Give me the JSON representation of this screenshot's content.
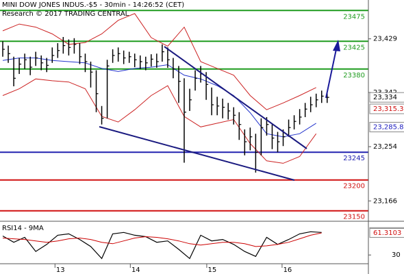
{
  "chart_data": [
    {
      "type": "ohlc",
      "title": "MINI DOW JONES INDUS.-$5 - 30min - 14:26:52 (CET)",
      "subtitle": "Research © 2017 TRADING CENTRAL",
      "x": [
        0,
        1,
        2,
        3,
        4,
        5,
        6,
        7,
        8,
        9,
        10,
        11,
        12,
        13,
        14,
        15,
        16,
        17,
        18,
        19,
        20,
        21,
        22,
        23,
        24,
        25,
        26,
        27,
        28,
        29,
        30,
        31,
        32,
        33,
        34,
        35,
        36,
        37,
        38,
        39,
        40,
        41,
        42,
        43,
        44,
        45,
        46,
        47,
        48,
        49,
        50,
        51,
        52,
        53,
        54,
        55,
        56,
        57,
        58,
        59
      ],
      "high": [
        23425,
        23418,
        23400,
        23398,
        23405,
        23400,
        23408,
        23402,
        23398,
        23415,
        23422,
        23432,
        23428,
        23430,
        23422,
        23405,
        23392,
        23378,
        23320,
        23395,
        23412,
        23415,
        23410,
        23408,
        23405,
        23402,
        23400,
        23404,
        23405,
        23420,
        23415,
        23398,
        23385,
        23365,
        23348,
        23378,
        23385,
        23375,
        23350,
        23335,
        23332,
        23325,
        23318,
        23310,
        23282,
        23285,
        23275,
        23300,
        23302,
        23290,
        23278,
        23282,
        23298,
        23305,
        23315,
        23325,
        23335,
        23340,
        23345,
        23342
      ],
      "low": [
        23400,
        23390,
        23352,
        23372,
        23380,
        23370,
        23385,
        23378,
        23375,
        23390,
        23398,
        23405,
        23402,
        23405,
        23388,
        23375,
        23350,
        23310,
        23290,
        23300,
        23390,
        23392,
        23388,
        23390,
        23383,
        23380,
        23378,
        23384,
        23382,
        23392,
        23382,
        23365,
        23325,
        23228,
        23312,
        23345,
        23358,
        23330,
        23305,
        23305,
        23300,
        23298,
        23290,
        23265,
        23240,
        23248,
        23212,
        23240,
        23272,
        23250,
        23245,
        23255,
        23270,
        23282,
        23290,
        23302,
        23310,
        23318,
        23325,
        23325
      ],
      "close": [
        23412,
        23405,
        23365,
        23388,
        23395,
        23383,
        23398,
        23390,
        23386,
        23402,
        23410,
        23418,
        23415,
        23420,
        23400,
        23392,
        23375,
        23340,
        23300,
        23385,
        23402,
        23405,
        23398,
        23400,
        23395,
        23392,
        23390,
        23396,
        23392,
        23408,
        23395,
        23380,
        23360,
        23310,
        23330,
        23365,
        23372,
        23355,
        23322,
        23320,
        23318,
        23312,
        23305,
        23290,
        23262,
        23270,
        23245,
        23285,
        23290,
        23268,
        23262,
        23270,
        23285,
        23295,
        23302,
        23315,
        23322,
        23330,
        23336,
        23334
      ],
      "color": "#000000",
      "indicators": {
        "x": [
          0,
          3,
          6,
          9,
          12,
          15,
          18,
          21,
          24,
          27,
          30,
          33,
          36,
          39,
          42,
          45,
          48,
          51,
          54,
          57
        ],
        "upper": [
          23442,
          23453,
          23448,
          23437,
          23420,
          23423,
          23437,
          23459,
          23470,
          23431,
          23417,
          23448,
          23392,
          23381,
          23370,
          23337,
          23314,
          23325,
          23337,
          23350
        ],
        "middle": [
          23394,
          23398,
          23398,
          23394,
          23392,
          23390,
          23381,
          23376,
          23381,
          23383,
          23387,
          23370,
          23364,
          23353,
          23337,
          23309,
          23275,
          23270,
          23275,
          23292
        ],
        "lower": [
          23337,
          23348,
          23364,
          23361,
          23359,
          23348,
          23303,
          23294,
          23314,
          23337,
          23353,
          23303,
          23286,
          23292,
          23298,
          23259,
          23231,
          23227,
          23238,
          23275
        ],
        "band_color": "#cc2222",
        "middle_color": "#2233cc"
      },
      "xlim": [
        -0.5,
        66.5
      ],
      "ylim": [
        23133,
        23492
      ],
      "yticks": [
        {
          "value": 23429,
          "label": "23,429"
        },
        {
          "value": 23342,
          "label": "23,342"
        },
        {
          "value": 23254,
          "label": "23,254"
        },
        {
          "value": 23166,
          "label": "23,166"
        }
      ],
      "levels": [
        {
          "value": 23475,
          "color": "#1e9b1e"
        },
        {
          "value": 23425,
          "color": "#1e9b1e"
        },
        {
          "value": 23380,
          "color": "#1e9b1e"
        },
        {
          "value": 23245,
          "color": "#2020b0"
        },
        {
          "value": 23200,
          "color": "#d01010"
        },
        {
          "value": 23150,
          "color": "#d01010"
        }
      ],
      "markers": [
        {
          "value": 23334,
          "label": "23,334",
          "color": "#000000",
          "fill": "#ffffff"
        },
        {
          "value": 23315.3,
          "label": "23,315.3",
          "color": "#d01010",
          "fill": "#ffffff"
        },
        {
          "value": 23285.8,
          "label": "23,285.8",
          "color": "#2020c0",
          "fill": "#ffffff"
        }
      ]
    },
    {
      "type": "line",
      "title": "RSI14 - 9MA",
      "x": [
        0,
        2,
        4,
        6,
        8,
        10,
        12,
        14,
        16,
        18,
        20,
        22,
        24,
        26,
        28,
        30,
        32,
        34,
        36,
        38,
        40,
        42,
        44,
        46,
        48,
        50,
        52,
        54,
        56,
        58
      ],
      "series": [
        {
          "color": "#000000",
          "values": [
            57,
            48,
            55,
            35,
            45,
            58,
            60,
            52,
            42,
            25,
            60,
            62,
            58,
            56,
            48,
            50,
            38,
            25,
            58,
            50,
            52,
            45,
            35,
            28,
            55,
            45,
            52,
            60,
            63,
            62
          ]
        },
        {
          "color": "#cc0000",
          "values": [
            54,
            53,
            52,
            50,
            48,
            50,
            53,
            54,
            52,
            48,
            46,
            50,
            54,
            56,
            55,
            53,
            50,
            46,
            44,
            46,
            48,
            48,
            46,
            42,
            43,
            45,
            48,
            53,
            58,
            61.3
          ]
        }
      ],
      "xlim": [
        -0.5,
        66.5
      ],
      "xticks": [
        {
          "value": 9.5,
          "label": "13"
        },
        {
          "value": 23.2,
          "label": "14"
        },
        {
          "value": 37.1,
          "label": "15"
        },
        {
          "value": 50.8,
          "label": "16"
        }
      ],
      "ylim": [
        17.6,
        75.9
      ],
      "yticks": [
        30
      ],
      "markers": [
        {
          "value": 62.5048,
          "color": "#000000"
        },
        {
          "value": 61.3103,
          "color": "#d01010"
        }
      ]
    }
  ]
}
